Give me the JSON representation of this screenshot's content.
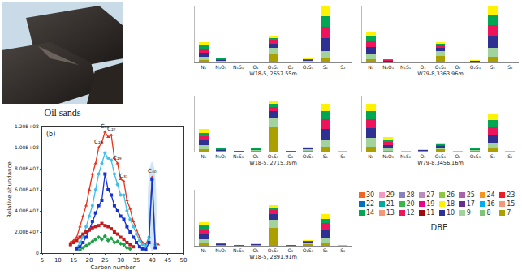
{
  "photo": {
    "caption": "Oil sands"
  },
  "dbe_legend": {
    "title": "DBE",
    "entries": [
      {
        "name": "30",
        "color": "#f26522"
      },
      {
        "name": "29",
        "color": "#f49ac1"
      },
      {
        "name": "28",
        "color": "#8781bd"
      },
      {
        "name": "27",
        "color": "#bd8cbf"
      },
      {
        "name": "26",
        "color": "#8dc63f"
      },
      {
        "name": "25",
        "color": "#a864a8"
      },
      {
        "name": "24",
        "color": "#f7941d"
      },
      {
        "name": "23",
        "color": "#ed1c24"
      },
      {
        "name": "22",
        "color": "#0072bc"
      },
      {
        "name": "21",
        "color": "#00a99d"
      },
      {
        "name": "20",
        "color": "#39b54a"
      },
      {
        "name": "19",
        "color": "#ec008c"
      },
      {
        "name": "18",
        "color": "#fff200"
      },
      {
        "name": "17",
        "color": "#662d91"
      },
      {
        "name": "16",
        "color": "#00aeef"
      },
      {
        "name": "15",
        "color": "#f7977a"
      },
      {
        "name": "14",
        "color": "#00a651"
      },
      {
        "name": "13",
        "color": "#f69679"
      },
      {
        "name": "12",
        "color": "#ee145b"
      },
      {
        "name": "11",
        "color": "#9e0b0f"
      },
      {
        "name": "10",
        "color": "#2e3192"
      },
      {
        "name": "9",
        "color": "#a3d39c"
      },
      {
        "name": "8",
        "color": "#7cc576"
      },
      {
        "name": "7",
        "color": "#aba000"
      }
    ]
  },
  "chart_data": [
    {
      "type": "line",
      "title": "(b)",
      "x_label": "Carbon number",
      "y_label": "Relative abundance",
      "x": [
        14,
        15,
        16,
        17,
        18,
        19,
        20,
        21,
        22,
        23,
        24,
        25,
        26,
        27,
        28,
        29,
        30,
        31,
        32,
        33,
        34,
        35,
        36,
        37,
        38,
        39,
        40,
        41,
        42
      ],
      "xlim": [
        5,
        50
      ],
      "xticks": [
        5,
        10,
        15,
        20,
        25,
        30,
        35,
        40,
        45,
        50
      ],
      "ylim": [
        0,
        120000000.0
      ],
      "yticks": [
        0,
        {
          "value": 20000000.0,
          "label": "2.00E+07"
        },
        {
          "value": 40000000.0,
          "label": "4.00E+07"
        },
        {
          "value": 60000000.0,
          "label": "6.00E+07"
        },
        {
          "value": 80000000.0,
          "label": "8.00E+07"
        },
        {
          "value": 100000000.0,
          "label": "1.00E+08"
        },
        {
          "value": 120000000.0,
          "label": "1.20E+08"
        }
      ],
      "grid": false,
      "series": [
        {
          "color": "#e8341c",
          "marker": "triangle-up",
          "values": [
            10000000.0,
            12000000.0,
            15000000.0,
            25000000.0,
            35000000.0,
            45000000.0,
            60000000.0,
            75000000.0,
            85000000.0,
            100000000.0,
            105000000.0,
            115000000.0,
            110000000.0,
            112000000.0,
            90000000.0,
            85000000.0,
            70000000.0,
            68000000.0,
            50000000.0,
            42000000.0,
            30000000.0,
            22000000.0,
            15000000.0,
            10000000.0,
            8000000.0,
            15000000.0,
            72000000.0,
            10000000.0,
            8000000.0
          ]
        },
        {
          "color": "#3fc0ea",
          "marker": "circle",
          "values": [
            null,
            null,
            5000000.0,
            10000000.0,
            15000000.0,
            25000000.0,
            35000000.0,
            45000000.0,
            60000000.0,
            75000000.0,
            85000000.0,
            95000000.0,
            90000000.0,
            88000000.0,
            75000000.0,
            65000000.0,
            55000000.0,
            55000000.0,
            40000000.0,
            32000000.0,
            25000000.0,
            18000000.0,
            12000000.0,
            8000000.0,
            6000000.0,
            15000000.0,
            70000000.0,
            8000000.0,
            null
          ]
        },
        {
          "color": "#1432d2",
          "marker": "square",
          "values": [
            null,
            null,
            4000000.0,
            6000000.0,
            10000000.0,
            15000000.0,
            22000000.0,
            30000000.0,
            38000000.0,
            45000000.0,
            50000000.0,
            75000000.0,
            60000000.0,
            55000000.0,
            45000000.0,
            40000000.0,
            35000000.0,
            32000000.0,
            25000000.0,
            20000000.0,
            15000000.0,
            10000000.0,
            6000000.0,
            4000000.0,
            3000000.0,
            10000000.0,
            70000000.0,
            5000000.0,
            null
          ]
        },
        {
          "color": "#c01e1e",
          "marker": "square",
          "values": [
            8000000.0,
            10000000.0,
            12000000.0,
            15000000.0,
            18000000.0,
            20000000.0,
            22000000.0,
            24000000.0,
            25000000.0,
            26000000.0,
            28000000.0,
            26000000.0,
            25000000.0,
            23000000.0,
            20000000.0,
            18000000.0,
            15000000.0,
            13000000.0,
            10000000.0,
            8000000.0,
            6000000.0,
            null,
            null,
            null,
            null,
            null,
            null,
            null,
            null
          ]
        },
        {
          "color": "#1ea046",
          "marker": "diamond",
          "values": [
            null,
            null,
            null,
            3000000.0,
            5000000.0,
            7000000.0,
            9000000.0,
            11000000.0,
            13000000.0,
            15000000.0,
            13000000.0,
            16000000.0,
            12000000.0,
            14000000.0,
            10000000.0,
            11000000.0,
            9000000.0,
            8000000.0,
            5000000.0,
            4000000.0,
            null,
            null,
            null,
            null,
            null,
            null,
            null,
            null,
            null
          ]
        }
      ],
      "annotations": [
        {
          "text": "C₂₃",
          "x": 23,
          "y": 100000000.0
        },
        {
          "text": "C₂₅",
          "x": 25,
          "y": 115000000.0
        },
        {
          "text": "C₂₇",
          "x": 27,
          "y": 112000000.0
        },
        {
          "text": "C₂₉",
          "x": 29,
          "y": 85000000.0
        },
        {
          "text": "C₃₁",
          "x": 31,
          "y": 68000000.0
        },
        {
          "text": "C₄₀",
          "x": 40,
          "y": 72000000.0
        }
      ]
    },
    {
      "type": "bar",
      "stacked": true,
      "title": "W18-5, 2657.55m",
      "tick_labels": "x",
      "ylim": [
        0,
        50
      ],
      "categories": [
        "N₁",
        "N₁O₁",
        "N₁S₁",
        "O₁",
        "O₁S₁",
        "O₂",
        "O₂S₁",
        "S₁",
        "S₂"
      ],
      "series": [
        {
          "name": "7",
          "values": [
            2,
            0.5,
            0.1,
            0.2,
            8,
            0.2,
            1,
            4,
            0.2
          ]
        },
        {
          "name": "9",
          "values": [
            3,
            0.8,
            0.1,
            0.2,
            5,
            0.2,
            0.8,
            6,
            0.2
          ]
        },
        {
          "name": "10",
          "values": [
            4,
            0.8,
            0.1,
            0.2,
            4,
            0.2,
            0.6,
            12,
            0.2
          ]
        },
        {
          "name": "12",
          "values": [
            3,
            0.7,
            0.1,
            0.2,
            3,
            0.2,
            0.5,
            10,
            0.2
          ]
        },
        {
          "name": "14",
          "values": [
            3,
            0.6,
            0.05,
            0.1,
            2,
            0.1,
            0.3,
            9,
            0.1
          ]
        },
        {
          "name": "18",
          "values": [
            3,
            0.6,
            0.05,
            0.1,
            1,
            0.1,
            0.3,
            9,
            0.1
          ]
        }
      ]
    },
    {
      "type": "bar",
      "stacked": true,
      "title": "W79-8,3363.96m",
      "tick_labels": "x",
      "ylim": [
        0,
        50
      ],
      "categories": [
        "N₁",
        "N₁O₁",
        "N₁S₁",
        "O₁",
        "O₁S₁",
        "O₂",
        "O₂S₁",
        "S₁",
        "S₂"
      ],
      "series": [
        {
          "name": "7",
          "values": [
            3,
            0.4,
            0.1,
            0.2,
            6,
            0.1,
            0.5,
            5,
            0.2
          ]
        },
        {
          "name": "9",
          "values": [
            5,
            0.6,
            0.1,
            0.2,
            4,
            0.1,
            0.4,
            8,
            0.2
          ]
        },
        {
          "name": "10",
          "values": [
            6,
            0.6,
            0.1,
            0.2,
            3,
            0.1,
            0.4,
            10,
            0.2
          ]
        },
        {
          "name": "12",
          "values": [
            5,
            0.5,
            0.1,
            0.2,
            2,
            0.1,
            0.3,
            10,
            0.2
          ]
        },
        {
          "name": "14",
          "values": [
            4,
            0.5,
            0.05,
            0.1,
            2,
            0.05,
            0.2,
            9,
            0.1
          ]
        },
        {
          "name": "18",
          "values": [
            4,
            0.4,
            0.05,
            0.1,
            1,
            0.05,
            0.2,
            8,
            0.1
          ]
        }
      ]
    },
    {
      "type": "bar",
      "stacked": true,
      "title": "W18-5, 2715.39m",
      "tick_labels": "x",
      "ylim": [
        0,
        50
      ],
      "categories": [
        "N₁",
        "N₁O₁",
        "N₁S₁",
        "O₁",
        "O₁S₁",
        "O₂",
        "O₂S₁",
        "S₁",
        "S₂"
      ],
      "series": [
        {
          "name": "7",
          "values": [
            2,
            0.4,
            0.1,
            0.5,
            22,
            0.1,
            1,
            4,
            0.2
          ]
        },
        {
          "name": "9",
          "values": [
            4,
            0.6,
            0.1,
            0.6,
            8,
            0.1,
            1,
            6,
            0.2
          ]
        },
        {
          "name": "10",
          "values": [
            4,
            0.6,
            0.1,
            0.6,
            6,
            0.1,
            0.8,
            10,
            0.2
          ]
        },
        {
          "name": "12",
          "values": [
            4,
            0.5,
            0.1,
            0.5,
            4,
            0.1,
            0.6,
            9,
            0.2
          ]
        },
        {
          "name": "14",
          "values": [
            3,
            0.5,
            0.05,
            0.4,
            3,
            0.05,
            0.3,
            7,
            0.1
          ]
        },
        {
          "name": "18",
          "values": [
            3,
            0.4,
            0.05,
            0.4,
            2,
            0.05,
            0.3,
            7,
            0.1
          ]
        }
      ]
    },
    {
      "type": "bar",
      "stacked": true,
      "title": "W79-8,3456.16m",
      "tick_labels": "x",
      "ylim": [
        0,
        50
      ],
      "categories": [
        "N₁",
        "N₁O₁",
        "N₁S₁",
        "O₁",
        "O₁S₁",
        "O₂",
        "O₂S₁",
        "S₁",
        "S₂"
      ],
      "series": [
        {
          "name": "7",
          "values": [
            4,
            1,
            0.2,
            0.4,
            2,
            0.2,
            0.6,
            3,
            0.2
          ]
        },
        {
          "name": "9",
          "values": [
            8,
            2,
            0.2,
            0.4,
            1.5,
            0.2,
            0.6,
            5,
            0.2
          ]
        },
        {
          "name": "10",
          "values": [
            9,
            3,
            0.2,
            0.4,
            1.5,
            0.2,
            0.6,
            7,
            0.2
          ]
        },
        {
          "name": "12",
          "values": [
            8,
            3,
            0.2,
            0.4,
            1,
            0.2,
            0.5,
            7,
            0.2
          ]
        },
        {
          "name": "14",
          "values": [
            7,
            2,
            0.1,
            0.2,
            1,
            0.1,
            0.4,
            6,
            0.1
          ]
        },
        {
          "name": "18",
          "values": [
            7,
            2,
            0.1,
            0.2,
            1,
            0.1,
            0.3,
            5,
            0.1
          ]
        }
      ]
    },
    {
      "type": "bar",
      "stacked": true,
      "title": "W18-5, 2891.91m",
      "tick_labels": "x",
      "ylim": [
        0,
        50
      ],
      "categories": [
        "N₁",
        "N₁O₁",
        "N₁S₁",
        "O₁",
        "O₁S₁",
        "O₂",
        "O₂S₁",
        "S₁",
        "S₂"
      ],
      "series": [
        {
          "name": "7",
          "values": [
            2,
            0.4,
            0.1,
            0.4,
            16,
            0.1,
            1.5,
            3,
            0.2
          ]
        },
        {
          "name": "9",
          "values": [
            4,
            0.6,
            0.1,
            0.4,
            7,
            0.1,
            1,
            4,
            0.2
          ]
        },
        {
          "name": "10",
          "values": [
            4,
            0.6,
            0.1,
            0.4,
            5,
            0.1,
            1,
            7,
            0.2
          ]
        },
        {
          "name": "12",
          "values": [
            4,
            0.5,
            0.1,
            0.4,
            4,
            0.1,
            0.7,
            6,
            0.2
          ]
        },
        {
          "name": "14",
          "values": [
            4,
            0.5,
            0.05,
            0.2,
            2,
            0.05,
            0.4,
            4,
            0.1
          ]
        },
        {
          "name": "18",
          "values": [
            3,
            0.4,
            0.05,
            0.2,
            2,
            0.05,
            0.4,
            4,
            0.1
          ]
        }
      ]
    }
  ]
}
